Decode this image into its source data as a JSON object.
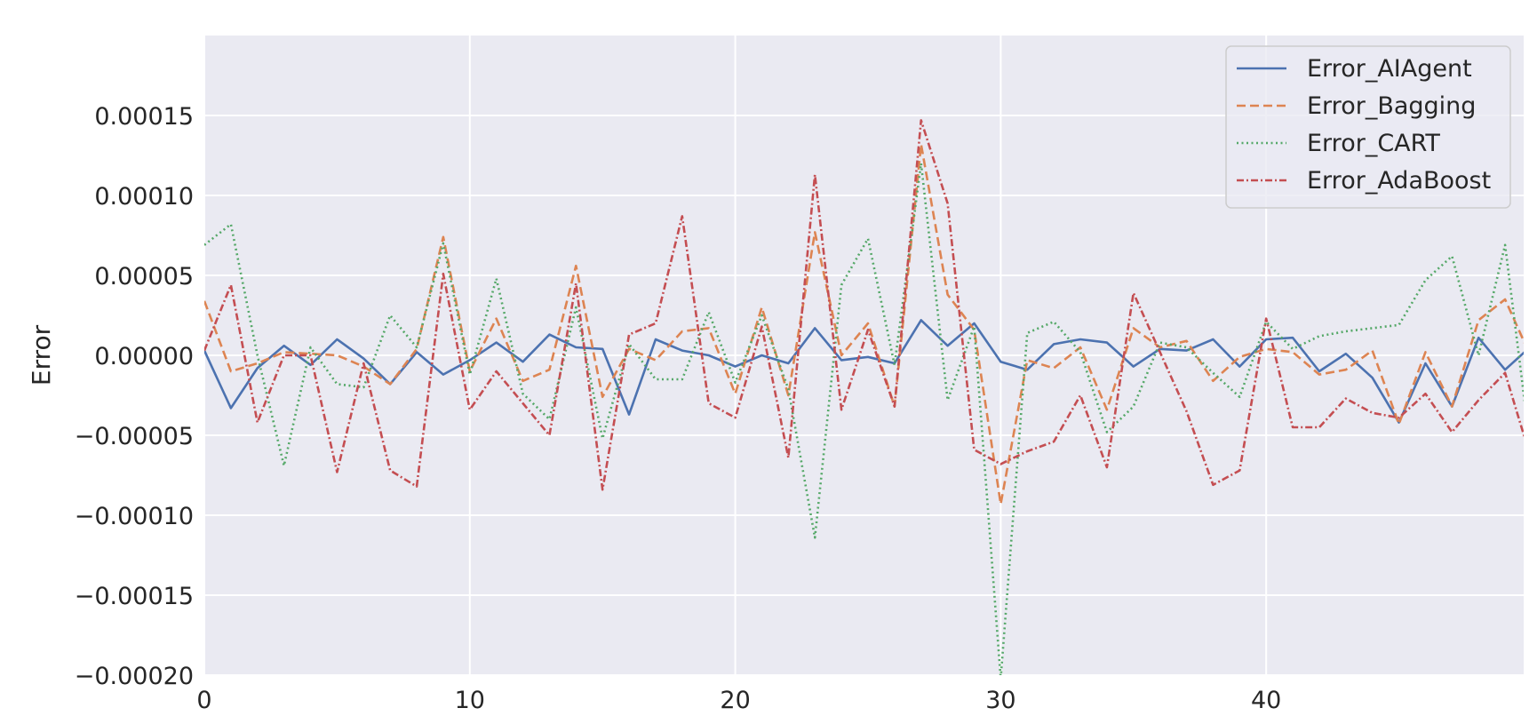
{
  "chart_data": {
    "type": "line",
    "xlabel": "",
    "ylabel": "Error",
    "xlim": [
      0,
      49.7
    ],
    "ylim": [
      -0.0002,
      0.0002
    ],
    "xticks": [
      0,
      10,
      20,
      30,
      40
    ],
    "xtick_labels": [
      "0",
      "10",
      "20",
      "30",
      "40"
    ],
    "yticks": [
      -0.0002,
      -0.00015,
      -0.0001,
      -5e-05,
      0,
      5e-05,
      0.0001,
      0.00015
    ],
    "ytick_labels": [
      "−0.00020",
      "−0.00015",
      "−0.00010",
      "−0.00005",
      "0.00000",
      "0.00005",
      "0.00010",
      "0.00015"
    ],
    "grid": true,
    "legend_position": "top-right",
    "x": [
      0,
      1,
      2,
      3,
      4,
      5,
      6,
      7,
      8,
      9,
      10,
      11,
      12,
      13,
      14,
      15,
      16,
      17,
      18,
      19,
      20,
      21,
      22,
      23,
      24,
      25,
      26,
      27,
      28,
      29,
      30,
      31,
      32,
      33,
      34,
      35,
      36,
      37,
      38,
      39,
      40,
      41,
      42,
      43,
      44,
      45,
      46,
      47,
      48,
      49,
      50
    ],
    "series": [
      {
        "name": "Error_AIAgent",
        "color": "#4c72b0",
        "dash": "solid",
        "values": [
          3e-06,
          -3.3e-05,
          -8e-06,
          6e-06,
          -6e-06,
          1e-05,
          -2e-06,
          -1.8e-05,
          2e-06,
          -1.2e-05,
          -3e-06,
          8e-06,
          -4e-06,
          1.3e-05,
          5e-06,
          4e-06,
          -3.7e-05,
          1e-05,
          3e-06,
          0.0,
          -7e-06,
          0.0,
          -5e-06,
          1.7e-05,
          -3e-06,
          -1e-06,
          -5e-06,
          2.2e-05,
          6e-06,
          2e-05,
          -4e-06,
          -9e-06,
          7e-06,
          1e-05,
          8e-06,
          -7e-06,
          4e-06,
          3e-06,
          1e-05,
          -7e-06,
          1e-05,
          1.1e-05,
          -1e-05,
          1e-06,
          -1.4e-05,
          -4.2e-05,
          -5e-06,
          -3.2e-05,
          1.1e-05,
          -9e-06,
          6e-06
        ]
      },
      {
        "name": "Error_Bagging",
        "color": "#dd8452",
        "dash": "dashed",
        "values": [
          3.4e-05,
          -1e-05,
          -5e-06,
          2e-06,
          1e-06,
          0.0,
          -7e-06,
          -1.8e-05,
          4e-06,
          7.4e-05,
          -1e-05,
          2.3e-05,
          -1.6e-05,
          -9e-06,
          5.6e-05,
          -2.6e-05,
          4e-06,
          -3e-06,
          1.5e-05,
          1.7e-05,
          -2.4e-05,
          3e-05,
          -2.5e-05,
          7.7e-05,
          0.0,
          2e-05,
          -3.2e-05,
          0.000132,
          3.8e-05,
          1.6e-05,
          -9.3e-05,
          -3e-06,
          -8e-06,
          5e-06,
          -3.4e-05,
          1.7e-05,
          5e-06,
          9e-06,
          -1.6e-05,
          -1e-06,
          4e-06,
          2e-06,
          -1.2e-05,
          -9e-06,
          3e-06,
          -4.3e-05,
          2e-06,
          -3.2e-05,
          2.2e-05,
          3.5e-05,
          -2e-06
        ]
      },
      {
        "name": "Error_CART",
        "color": "#55a868",
        "dash": "dotted",
        "values": [
          6.9e-05,
          8.2e-05,
          0.0,
          -6.9e-05,
          5e-06,
          -1.8e-05,
          -2e-05,
          2.5e-05,
          5e-06,
          7e-05,
          -1.2e-05,
          4.8e-05,
          -2.4e-05,
          -4e-05,
          3e-05,
          -5.2e-05,
          7e-06,
          -1.5e-05,
          -1.5e-05,
          2.7e-05,
          -1.7e-05,
          2.5e-05,
          -2.1e-05,
          -0.000114,
          4.4e-05,
          7.3e-05,
          -6e-06,
          0.00012,
          -2.8e-05,
          1.8e-05,
          -0.000202,
          1.4e-05,
          2.1e-05,
          2e-06,
          -4.8e-05,
          -3.2e-05,
          8e-06,
          5e-06,
          -1.1e-05,
          -2.6e-05,
          2.1e-05,
          4e-06,
          1.2e-05,
          1.5e-05,
          1.7e-05,
          1.9e-05,
          4.7e-05,
          6.2e-05,
          0.0,
          6.9e-05,
          -6.4e-05
        ]
      },
      {
        "name": "Error_AdaBoost",
        "color": "#c44e52",
        "dash": "dashdot",
        "values": [
          3e-06,
          4.4e-05,
          -4.2e-05,
          0.0,
          0.0,
          -7.3e-05,
          -5e-06,
          -7.2e-05,
          -8.2e-05,
          5.1e-05,
          -3.4e-05,
          -1e-05,
          -3e-05,
          -5e-05,
          4.5e-05,
          -8.4e-05,
          1.3e-05,
          2e-05,
          8.7e-05,
          -3e-05,
          -3.9e-05,
          1.8e-05,
          -6.4e-05,
          0.000113,
          -3.4e-05,
          1.6e-05,
          -3.2e-05,
          0.000147,
          9.5e-05,
          -5.9e-05,
          -6.8e-05,
          -6e-05,
          -5.4e-05,
          -2.5e-05,
          -7e-05,
          3.9e-05,
          2e-06,
          -3.5e-05,
          -8.1e-05,
          -7.2e-05,
          2.3e-05,
          -4.5e-05,
          -4.5e-05,
          -2.7e-05,
          -3.6e-05,
          -3.9e-05,
          -2.4e-05,
          -4.8e-05,
          -2.8e-05,
          -1.1e-05,
          -6.6e-05
        ]
      }
    ]
  }
}
